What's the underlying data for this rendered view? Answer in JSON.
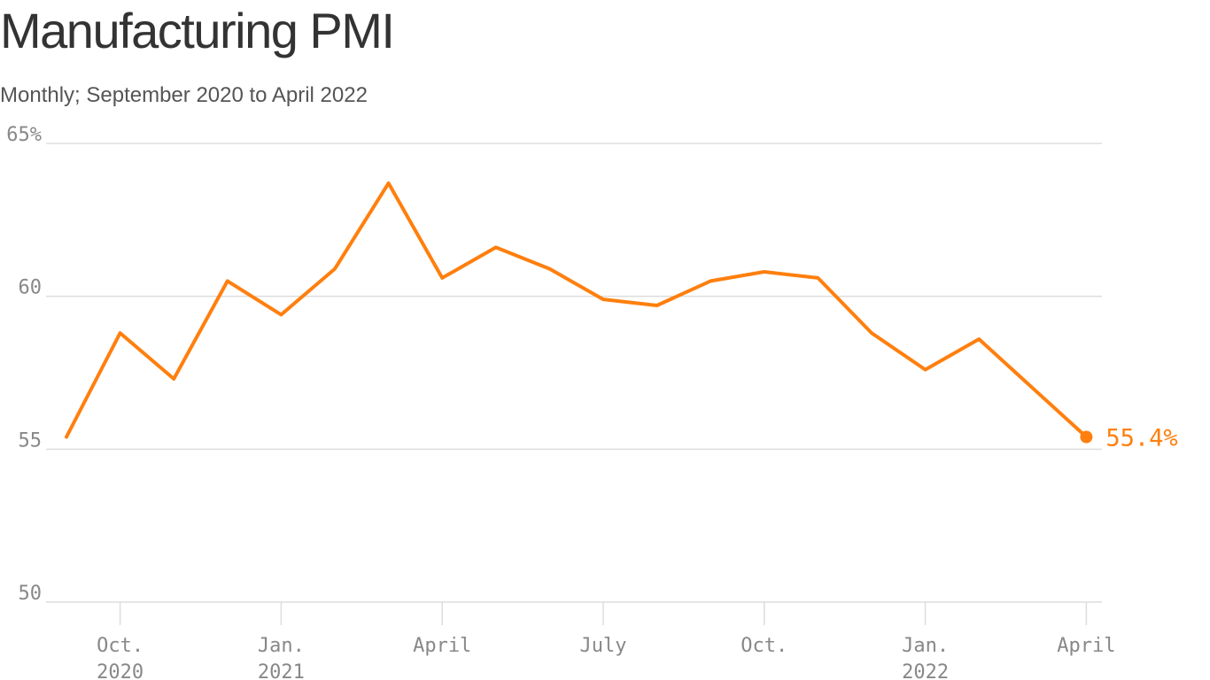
{
  "title": "Manufacturing PMI",
  "subtitle": "Monthly; September 2020 to April 2022",
  "colors": {
    "line": "#ff7f0e",
    "grid": "#dddddd",
    "tick_text": "#888888",
    "title": "#333333",
    "subtitle": "#555555"
  },
  "chart_data": {
    "type": "line",
    "title": "Manufacturing PMI",
    "subtitle": "Monthly; September 2020 to April 2022",
    "xlabel": "",
    "ylabel": "",
    "grid": true,
    "ylim": [
      50,
      65
    ],
    "yticks": [
      {
        "value": 65,
        "label": "65%"
      },
      {
        "value": 60,
        "label": "60"
      },
      {
        "value": 55,
        "label": "55"
      },
      {
        "value": 50,
        "label": "50"
      }
    ],
    "xticks": [
      {
        "x": "2020-10",
        "lines": [
          "Oct.",
          "2020"
        ]
      },
      {
        "x": "2021-01",
        "lines": [
          "Jan.",
          "2021"
        ]
      },
      {
        "x": "2021-04",
        "lines": [
          "April"
        ]
      },
      {
        "x": "2021-07",
        "lines": [
          "July"
        ]
      },
      {
        "x": "2021-10",
        "lines": [
          "Oct."
        ]
      },
      {
        "x": "2022-01",
        "lines": [
          "Jan.",
          "2022"
        ]
      },
      {
        "x": "2022-04",
        "lines": [
          "April"
        ]
      }
    ],
    "series": [
      {
        "x": [
          "2020-09",
          "2020-10",
          "2020-11",
          "2020-12",
          "2021-01",
          "2021-02",
          "2021-03",
          "2021-04",
          "2021-05",
          "2021-06",
          "2021-07",
          "2021-08",
          "2021-09",
          "2021-10",
          "2021-11",
          "2021-12",
          "2022-01",
          "2022-02",
          "2022-03",
          "2022-04"
        ],
        "values": [
          55.4,
          58.8,
          57.3,
          60.5,
          59.4,
          60.9,
          63.7,
          60.6,
          61.6,
          60.9,
          59.9,
          59.7,
          60.5,
          60.8,
          60.6,
          58.8,
          57.6,
          58.6,
          57.0,
          55.4
        ]
      }
    ],
    "end_label": "55.4%"
  }
}
